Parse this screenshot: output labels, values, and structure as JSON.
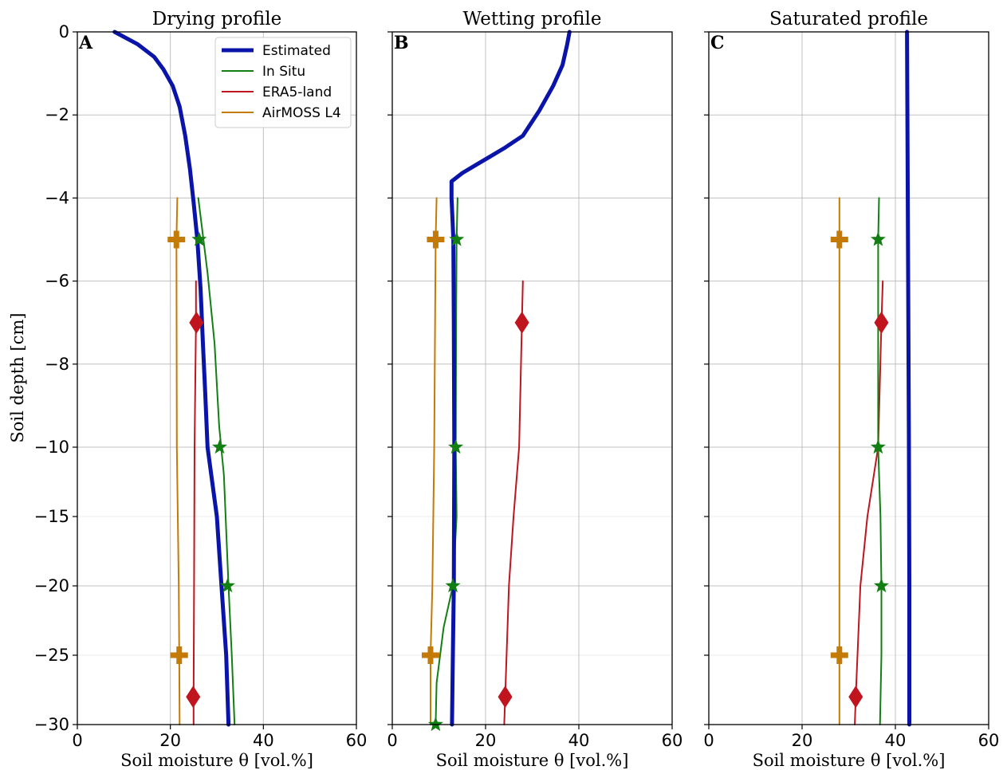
{
  "chart_data": {
    "type": "line",
    "ylabel": "Soil depth [cm]",
    "xlabel": "Soil moisture θ [vol.%]",
    "ylim": [
      -30,
      0
    ],
    "xlim": [
      0,
      60
    ],
    "x_ticks": [
      0,
      20,
      40,
      60
    ],
    "y_ticks": [
      0,
      -2,
      -4,
      -6,
      -8,
      -10,
      -15,
      -20,
      -25,
      -30
    ],
    "y_axis_note": "piecewise-linear depth axis: 0 to -10 cm and -10 to -30 cm drawn at different scales",
    "grid": true,
    "legend_location": "top-right of panel A",
    "series_styles": [
      {
        "name": "Estimated",
        "color": "#0a14a8",
        "marker": "none"
      },
      {
        "name": "In Situ",
        "color": "#127f12",
        "marker": "star"
      },
      {
        "name": "ERA5-land",
        "color": "#c0141e",
        "marker": "diamond"
      },
      {
        "name": "AirMOSS L4",
        "color": "#c47a06",
        "marker": "plus"
      }
    ],
    "panels": [
      {
        "letter": "A",
        "title": "Drying profile",
        "series": [
          {
            "name": "Estimated",
            "points": [
              [
                8,
                0
              ],
              [
                13,
                -0.3
              ],
              [
                16.5,
                -0.6
              ],
              [
                18.5,
                -0.9
              ],
              [
                20.5,
                -1.3
              ],
              [
                22,
                -1.8
              ],
              [
                23.2,
                -2.5
              ],
              [
                24.2,
                -3.3
              ],
              [
                25,
                -4.1
              ],
              [
                25.8,
                -5
              ],
              [
                26.5,
                -6.2
              ],
              [
                27,
                -7.5
              ],
              [
                27.5,
                -8.7
              ],
              [
                28,
                -10
              ],
              [
                30,
                -15
              ],
              [
                31,
                -20
              ],
              [
                32,
                -25
              ],
              [
                32.5,
                -30
              ]
            ]
          },
          {
            "name": "In Situ",
            "points": [
              [
                26,
                -4
              ],
              [
                28,
                -5.8
              ],
              [
                29.5,
                -7.5
              ],
              [
                30.5,
                -9.5
              ],
              [
                31.5,
                -12
              ],
              [
                32.5,
                -20
              ],
              [
                33.2,
                -25
              ],
              [
                33.8,
                -30
              ]
            ],
            "markers": [
              [
                26.2,
                -5
              ],
              [
                30.6,
                -10
              ],
              [
                32.3,
                -20
              ]
            ]
          },
          {
            "name": "ERA5-land",
            "points": [
              [
                25.5,
                -6
              ],
              [
                25.5,
                -7
              ],
              [
                25.2,
                -10
              ],
              [
                25.1,
                -20
              ],
              [
                25,
                -28
              ],
              [
                25,
                -30
              ]
            ],
            "markers": [
              [
                25.6,
                -7
              ],
              [
                24.9,
                -28
              ]
            ]
          },
          {
            "name": "AirMOSS L4",
            "points": [
              [
                21.5,
                -4
              ],
              [
                21.3,
                -5
              ],
              [
                21.4,
                -10
              ],
              [
                21.8,
                -20
              ],
              [
                21.9,
                -25
              ],
              [
                22,
                -30
              ]
            ],
            "markers": [
              [
                21.3,
                -5
              ],
              [
                21.9,
                -25
              ]
            ]
          }
        ]
      },
      {
        "letter": "B",
        "title": "Wetting profile",
        "series": [
          {
            "name": "Estimated",
            "points": [
              [
                38,
                0
              ],
              [
                37.5,
                -0.3
              ],
              [
                36.5,
                -0.8
              ],
              [
                34.5,
                -1.3
              ],
              [
                31.5,
                -1.9
              ],
              [
                28,
                -2.5
              ],
              [
                24,
                -2.8
              ],
              [
                21,
                -3
              ],
              [
                18,
                -3.2
              ],
              [
                15,
                -3.4
              ],
              [
                12.7,
                -3.6
              ],
              [
                12.7,
                -4
              ],
              [
                12.9,
                -4.5
              ],
              [
                13.1,
                -5
              ],
              [
                13.2,
                -7
              ],
              [
                13.3,
                -10
              ],
              [
                13.2,
                -20
              ],
              [
                13,
                -25
              ],
              [
                12.8,
                -30
              ]
            ]
          },
          {
            "name": "In Situ",
            "points": [
              [
                14,
                -4
              ],
              [
                13.8,
                -5
              ],
              [
                13.7,
                -7
              ],
              [
                13.6,
                -10
              ],
              [
                13.8,
                -15
              ],
              [
                13,
                -20
              ],
              [
                11,
                -23
              ],
              [
                9.5,
                -27
              ],
              [
                9.3,
                -30
              ]
            ],
            "markers": [
              [
                13.8,
                -5
              ],
              [
                13.6,
                -10
              ],
              [
                13,
                -20
              ],
              [
                9.3,
                -30
              ]
            ]
          },
          {
            "name": "ERA5-land",
            "points": [
              [
                28,
                -6
              ],
              [
                27.8,
                -7
              ],
              [
                27.2,
                -10
              ],
              [
                26,
                -15
              ],
              [
                25,
                -20
              ],
              [
                24.2,
                -28
              ],
              [
                24,
                -30
              ]
            ],
            "markers": [
              [
                27.8,
                -7
              ],
              [
                24.2,
                -28
              ]
            ]
          },
          {
            "name": "AirMOSS L4",
            "points": [
              [
                9.5,
                -4
              ],
              [
                9.3,
                -5
              ],
              [
                9,
                -10
              ],
              [
                8.6,
                -20
              ],
              [
                8.2,
                -25
              ],
              [
                8.2,
                -30
              ]
            ],
            "markers": [
              [
                9.3,
                -5
              ],
              [
                8.2,
                -25
              ]
            ]
          }
        ]
      },
      {
        "letter": "C",
        "title": "Saturated profile",
        "series": [
          {
            "name": "Estimated",
            "points": [
              [
                42.5,
                0
              ],
              [
                42.7,
                -5
              ],
              [
                42.9,
                -10
              ],
              [
                43,
                -20
              ],
              [
                43,
                -30
              ]
            ]
          },
          {
            "name": "In Situ",
            "points": [
              [
                36.5,
                -4
              ],
              [
                36.3,
                -5
              ],
              [
                36.3,
                -10
              ],
              [
                36.8,
                -15
              ],
              [
                37,
                -20
              ],
              [
                37,
                -25
              ],
              [
                36.7,
                -30
              ]
            ],
            "markers": [
              [
                36.3,
                -5
              ],
              [
                36.3,
                -10
              ],
              [
                37,
                -20
              ]
            ]
          },
          {
            "name": "ERA5-land",
            "points": [
              [
                37.3,
                -6
              ],
              [
                37,
                -7
              ],
              [
                36.3,
                -10
              ],
              [
                34,
                -15
              ],
              [
                32.5,
                -20
              ],
              [
                31.5,
                -28
              ],
              [
                31.3,
                -30
              ]
            ],
            "markers": [
              [
                37,
                -7
              ],
              [
                31.5,
                -28
              ]
            ]
          },
          {
            "name": "AirMOSS L4",
            "points": [
              [
                28,
                -4
              ],
              [
                28,
                -5
              ],
              [
                28,
                -10
              ],
              [
                28,
                -20
              ],
              [
                28,
                -25
              ],
              [
                28,
                -30
              ]
            ],
            "markers": [
              [
                28,
                -5
              ],
              [
                28,
                -25
              ]
            ]
          }
        ]
      }
    ]
  }
}
